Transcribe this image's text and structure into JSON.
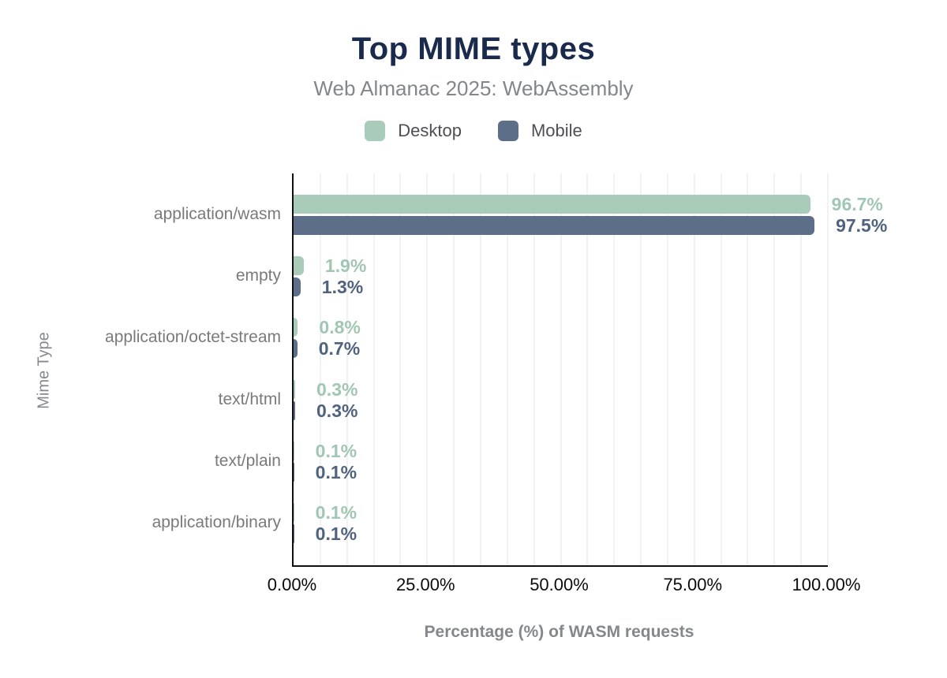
{
  "card": {
    "title": "Top MIME types",
    "subtitle": "Web Almanac 2025: WebAssembly"
  },
  "legend": {
    "items": [
      {
        "label": "Desktop",
        "color": "#a9cbba"
      },
      {
        "label": "Mobile",
        "color": "#5d6f88"
      }
    ]
  },
  "chart_data": {
    "type": "bar",
    "orientation": "horizontal",
    "title": "Top MIME types",
    "subtitle": "Web Almanac 2025: WebAssembly",
    "categories": [
      "application/wasm",
      "empty",
      "application/octet-stream",
      "text/html",
      "text/plain",
      "application/binary"
    ],
    "series": [
      {
        "name": "Desktop",
        "color": "#a9cbba",
        "label_color": "#a2c6b4",
        "values": [
          96.7,
          1.9,
          0.8,
          0.3,
          0.1,
          0.1
        ],
        "value_labels": [
          "96.7%",
          "1.9%",
          "0.8%",
          "0.3%",
          "0.1%",
          "0.1%"
        ]
      },
      {
        "name": "Mobile",
        "color": "#5d6f88",
        "label_color": "#50637e",
        "values": [
          97.5,
          1.3,
          0.7,
          0.3,
          0.1,
          0.1
        ],
        "value_labels": [
          "97.5%",
          "1.3%",
          "0.7%",
          "0.3%",
          "0.1%",
          "0.1%"
        ]
      }
    ],
    "xlabel": "Percentage (%) of WASM requests",
    "ylabel": "Mime Type",
    "xlim": [
      0,
      100
    ],
    "xticks": [
      {
        "value": 0,
        "label": "0.00%"
      },
      {
        "value": 25,
        "label": "25.00%"
      },
      {
        "value": 50,
        "label": "50.00%"
      },
      {
        "value": 75,
        "label": "75.00%"
      },
      {
        "value": 100,
        "label": "100.00%"
      }
    ],
    "grid": {
      "axis": "x",
      "interval_percent": 5,
      "color": "#f0f3f1"
    },
    "legend_position": "top",
    "axis_line_color": "#101010",
    "title_color": "#1a2a4c",
    "subtitle_color": "#84878a",
    "tick_label_color": "#0c0c0c",
    "category_label_color": "#7a7a7a",
    "axis_title_color": "#85888b"
  }
}
